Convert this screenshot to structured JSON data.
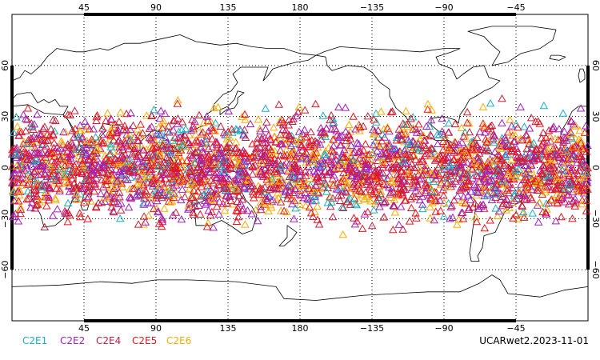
{
  "map": {
    "lon_ticks": [
      "45",
      "90",
      "135",
      "180",
      "−135",
      "−90",
      "−45"
    ],
    "lat_ticks": [
      "60",
      "30",
      "0",
      "−30",
      "−60"
    ],
    "lon_tick_values": [
      45,
      90,
      135,
      180,
      225,
      270,
      315
    ],
    "lat_tick_values": [
      60,
      30,
      0,
      -30,
      -60
    ],
    "lon_range": [
      0,
      360
    ],
    "lat_range": [
      -90,
      90
    ],
    "gridlines": "dotted",
    "land_color": "#000000"
  },
  "legend": {
    "placement": "bottom-left",
    "items": [
      {
        "label": "C2E1",
        "color": "#17b2c2"
      },
      {
        "label": "C2E2",
        "color": "#a020c0"
      },
      {
        "label": "C2E4",
        "color": "#c81e3c"
      },
      {
        "label": "C2E5",
        "color": "#e8141e"
      },
      {
        "label": "C2E6",
        "color": "#ffaa00"
      }
    ]
  },
  "product_label": "UCARwet2.2023-11-01",
  "observations": {
    "marker": "triangle-outline",
    "lat_band": [
      -45,
      45
    ],
    "series": [
      {
        "label": "C2E1",
        "color": "#17b2c2"
      },
      {
        "label": "C2E2",
        "color": "#a020c0"
      },
      {
        "label": "C2E4",
        "color": "#c81e3c"
      },
      {
        "label": "C2E5",
        "color": "#e8141e"
      },
      {
        "label": "C2E6",
        "color": "#ffaa00"
      }
    ]
  }
}
